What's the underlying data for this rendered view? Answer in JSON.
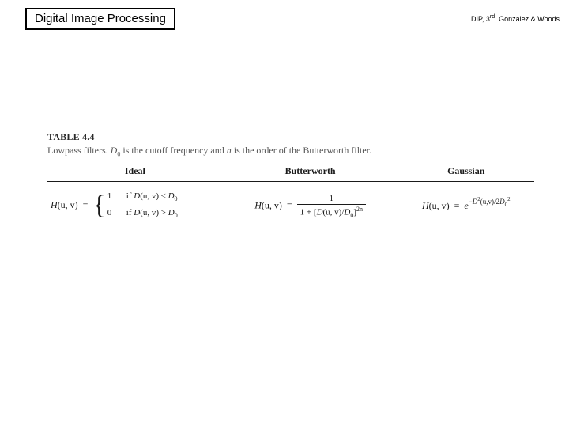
{
  "header": {
    "title": "Digital Image Processing",
    "credit_prefix": "DIP, 3",
    "credit_sup": "rd",
    "credit_suffix": ", Gonzalez & Woods"
  },
  "table": {
    "label": "TABLE 4.4",
    "caption_prefix": "Lowpass filters. ",
    "caption_d0": "D",
    "caption_d0_sub": "0",
    "caption_mid": " is the cutoff frequency and ",
    "caption_n": "n",
    "caption_suffix": " is the order of the Butterworth filter.",
    "columns": {
      "ideal": "Ideal",
      "butterworth": "Butterworth",
      "gaussian": "Gaussian"
    },
    "formulas": {
      "lhs_H": "H",
      "lhs_args": "(u, v)",
      "equals": "=",
      "ideal": {
        "val1": "1",
        "cond1_if": "if ",
        "cond1_D": "D",
        "cond1_args": "(u, v)",
        "cond1_op": " ≤ ",
        "cond1_D0": "D",
        "cond1_D0sub": "0",
        "val0": "0",
        "cond0_if": "if ",
        "cond0_D": "D",
        "cond0_args": "(u, v)",
        "cond0_op": " > ",
        "cond0_D0": "D",
        "cond0_D0sub": "0"
      },
      "butter": {
        "num": "1",
        "den_one": "1 + ",
        "den_lb": "[",
        "den_D": "D",
        "den_args": "(u, v)",
        "den_slash": "/",
        "den_D0": "D",
        "den_D0sub": "0",
        "den_rb": "]",
        "den_exp": "2n"
      },
      "gauss": {
        "e": "e",
        "exp_neg": "−",
        "exp_D": "D",
        "exp_sq": "2",
        "exp_args": "(u,v)",
        "exp_slash": "/2",
        "exp_D0": "D",
        "exp_D0sub": "0",
        "exp_D0sq": "2"
      }
    },
    "styling": {
      "border_color": "#1a1a1a",
      "header_font_size_pt": 12,
      "body_font_size_pt": 12,
      "caption_color": "#555555",
      "background_color": "#ffffff",
      "col_widths_pct": [
        36,
        36,
        28
      ]
    }
  }
}
